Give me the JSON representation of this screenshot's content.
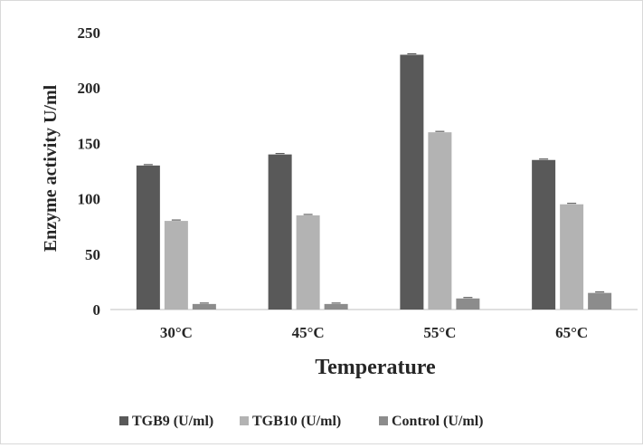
{
  "chart_data": {
    "type": "bar",
    "title": "",
    "xlabel": "Temperature",
    "ylabel": "Enzyme activity U/ml",
    "categories": [
      "30°C",
      "45°C",
      "55°C",
      "65°C"
    ],
    "ylim": [
      0,
      250
    ],
    "yticks": [
      0,
      50,
      100,
      150,
      200,
      250
    ],
    "grid": false,
    "legend_position": "bottom",
    "error_bars": true,
    "series": [
      {
        "name": "TGB9 (U/ml)",
        "color": "#595959",
        "values": [
          130,
          140,
          230,
          135
        ]
      },
      {
        "name": "TGB10 (U/ml)",
        "color": "#b3b3b3",
        "values": [
          80,
          85,
          160,
          95
        ]
      },
      {
        "name": "Control (U/ml)",
        "color": "#8c8c8c",
        "values": [
          5,
          5,
          10,
          15
        ]
      }
    ]
  }
}
